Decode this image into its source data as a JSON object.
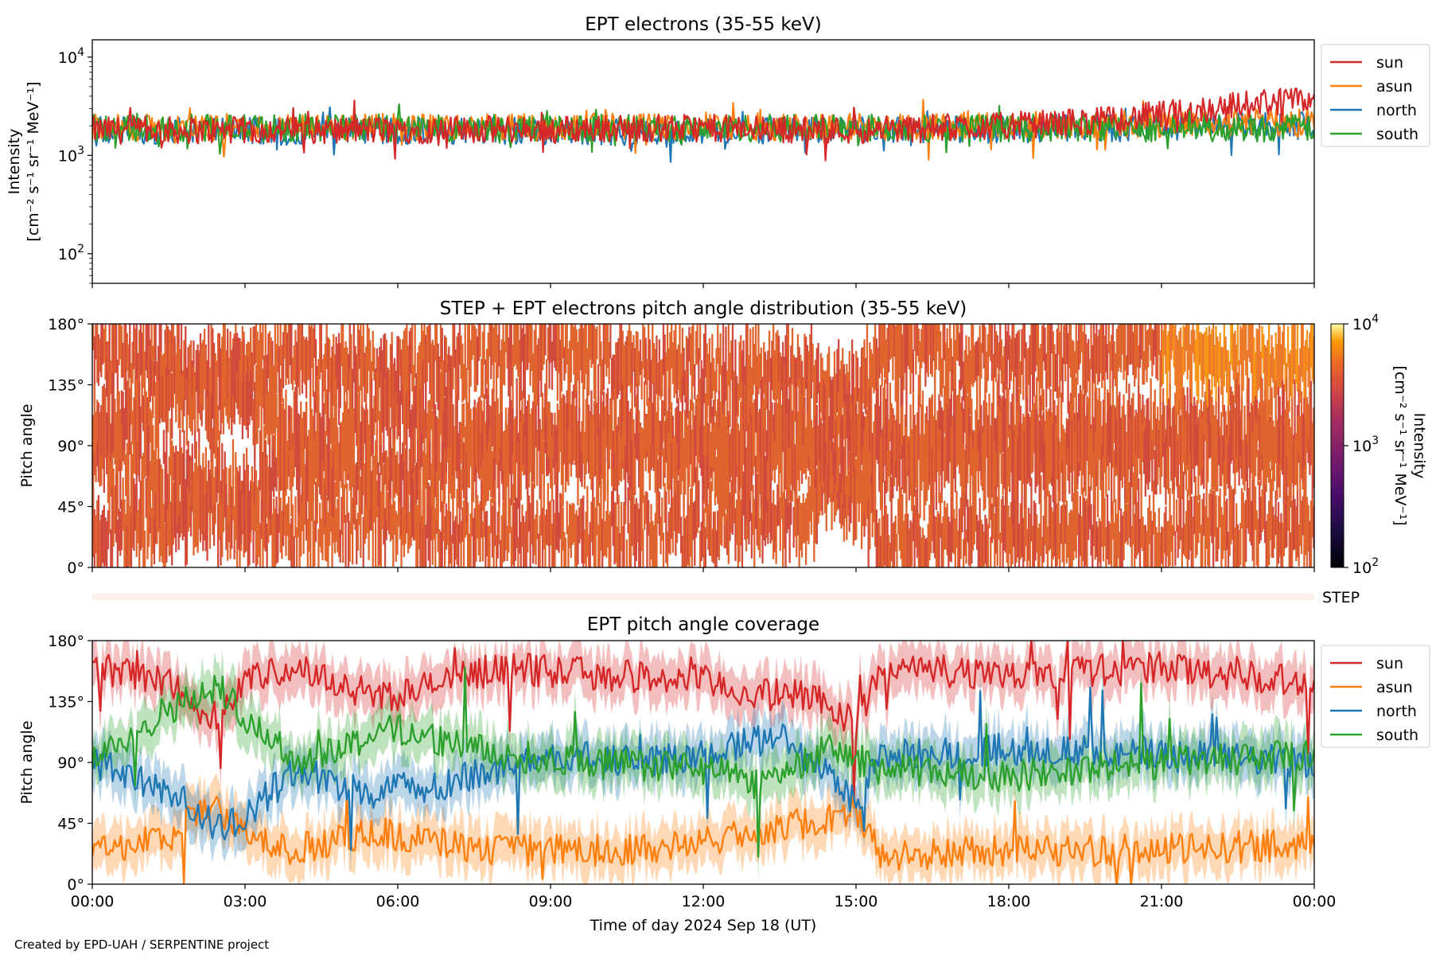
{
  "footer": {
    "credit": "Created by EPD-UAH / SERPENTINE project"
  },
  "chart_data": [
    {
      "type": "line",
      "title": "EPT electrons (35-55 keV)",
      "ylabel": [
        "Intensity",
        "[cm⁻² s⁻¹ sr⁻¹ MeV⁻¹]"
      ],
      "yscale": "log",
      "ylim": [
        50,
        15000
      ],
      "yticks": [
        {
          "value": 100,
          "base": "10",
          "exp": "2"
        },
        {
          "value": 1000,
          "base": "10",
          "exp": "3"
        },
        {
          "value": 10000,
          "base": "10",
          "exp": "4"
        }
      ],
      "legend_position": "outside-right",
      "series": [
        {
          "name": "sun",
          "color": "#d62728",
          "baseline": [
            [
              0,
              1800
            ],
            [
              6,
              1800
            ],
            [
              12,
              1900
            ],
            [
              15,
              1800
            ],
            [
              18,
              2000
            ],
            [
              20,
              2300
            ],
            [
              21,
              2600
            ],
            [
              22,
              3000
            ],
            [
              23,
              3500
            ],
            [
              24,
              3600
            ]
          ]
        },
        {
          "name": "asun",
          "color": "#ff7f0e",
          "baseline": [
            [
              0,
              1900
            ],
            [
              12,
              1950
            ],
            [
              18,
              2000
            ],
            [
              24,
              2200
            ]
          ]
        },
        {
          "name": "north",
          "color": "#1f77b4",
          "baseline": [
            [
              0,
              1800
            ],
            [
              12,
              1750
            ],
            [
              18,
              1850
            ],
            [
              24,
              2000
            ]
          ]
        },
        {
          "name": "south",
          "color": "#2ca02c",
          "baseline": [
            [
              0,
              1900
            ],
            [
              12,
              1900
            ],
            [
              18,
              1900
            ],
            [
              24,
              1900
            ]
          ]
        }
      ]
    },
    {
      "type": "heatmap",
      "title": "STEP + EPT electrons pitch angle distribution (35-55 keV)",
      "ylabel": "Pitch angle",
      "ylim": [
        0,
        180
      ],
      "yticks": [
        "0°",
        "45°",
        "90°",
        "135°",
        "180°"
      ],
      "colorbar": {
        "label": [
          "Intensity",
          "[cm⁻² s⁻¹ sr⁻¹ MeV⁻¹]"
        ],
        "scale": "log",
        "range": [
          100,
          10000
        ],
        "ticks": [
          {
            "base": "10",
            "exp": "2"
          },
          {
            "base": "10",
            "exp": "3"
          },
          {
            "base": "10",
            "exp": "4"
          }
        ]
      },
      "dominant_intensity": 2000,
      "late_intensity": 3500
    },
    {
      "type": "heatmap",
      "label": "STEP",
      "note": "empty strip"
    },
    {
      "type": "line",
      "title": "EPT pitch angle coverage",
      "ylabel": "Pitch angle",
      "ylim": [
        0,
        180
      ],
      "yticks": [
        "0°",
        "45°",
        "90°",
        "135°",
        "180°"
      ],
      "legend_position": "outside-right",
      "series": [
        {
          "name": "sun",
          "color": "#d62728",
          "baseline": [
            [
              0,
              160
            ],
            [
              1.5,
              150
            ],
            [
              2.3,
              120
            ],
            [
              3,
              150
            ],
            [
              4,
              160
            ],
            [
              5.5,
              140
            ],
            [
              6,
              140
            ],
            [
              8,
              160
            ],
            [
              10,
              155
            ],
            [
              12,
              150
            ],
            [
              13,
              140
            ],
            [
              14,
              140
            ],
            [
              15,
              120
            ],
            [
              15.5,
              160
            ],
            [
              18,
              155
            ],
            [
              21,
              160
            ],
            [
              24,
              150
            ]
          ]
        },
        {
          "name": "asun",
          "color": "#ff7f0e",
          "baseline": [
            [
              0,
              25
            ],
            [
              1.5,
              35
            ],
            [
              2.3,
              60
            ],
            [
              3,
              35
            ],
            [
              4,
              25
            ],
            [
              5.5,
              40
            ],
            [
              6,
              35
            ],
            [
              8,
              25
            ],
            [
              10,
              25
            ],
            [
              12,
              30
            ],
            [
              13,
              40
            ],
            [
              14,
              45
            ],
            [
              15,
              55
            ],
            [
              15.5,
              20
            ],
            [
              18,
              25
            ],
            [
              21,
              25
            ],
            [
              24,
              30
            ]
          ]
        },
        {
          "name": "north",
          "color": "#1f77b4",
          "baseline": [
            [
              0,
              90
            ],
            [
              1.5,
              70
            ],
            [
              2.5,
              40
            ],
            [
              3,
              50
            ],
            [
              4,
              85
            ],
            [
              5.5,
              65
            ],
            [
              6,
              70
            ],
            [
              7,
              75
            ],
            [
              9,
              95
            ],
            [
              11,
              90
            ],
            [
              12,
              95
            ],
            [
              13.5,
              110
            ],
            [
              14.5,
              80
            ],
            [
              15,
              60
            ],
            [
              15.5,
              95
            ],
            [
              18,
              100
            ],
            [
              21,
              95
            ],
            [
              24,
              90
            ]
          ]
        },
        {
          "name": "south",
          "color": "#2ca02c",
          "baseline": [
            [
              0,
              90
            ],
            [
              1.5,
              130
            ],
            [
              2.5,
              145
            ],
            [
              3,
              125
            ],
            [
              4,
              90
            ],
            [
              5.5,
              110
            ],
            [
              6,
              115
            ],
            [
              8,
              95
            ],
            [
              10,
              90
            ],
            [
              12,
              85
            ],
            [
              13,
              75
            ],
            [
              14.5,
              100
            ],
            [
              15.5,
              85
            ],
            [
              18,
              80
            ],
            [
              21,
              90
            ],
            [
              24,
              95
            ]
          ]
        }
      ]
    }
  ],
  "xaxis": {
    "label": "Time of day 2024 Sep 18 (UT)",
    "range": [
      0,
      24
    ],
    "ticks": [
      "00:00",
      "03:00",
      "06:00",
      "09:00",
      "12:00",
      "15:00",
      "18:00",
      "21:00",
      "00:00"
    ]
  }
}
